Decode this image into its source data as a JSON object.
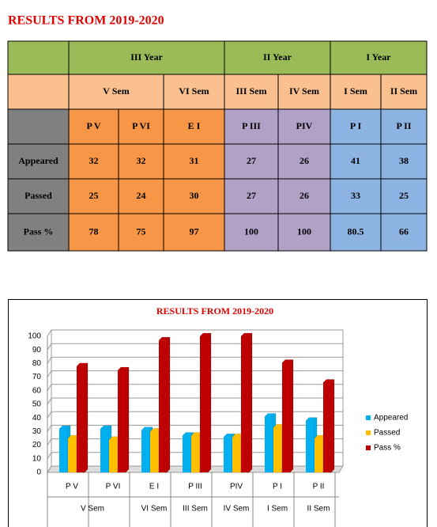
{
  "title": "RESULTS FROM 2019-2020",
  "table": {
    "years": [
      "III Year",
      "II Year",
      "I Year"
    ]
  },
  "chart_data": {
    "type": "bar",
    "title": "RESULTS FROM 2019-2020",
    "categories": [
      "P V",
      "P VI",
      "E I",
      "P III",
      "PIV",
      "P I",
      "P II"
    ],
    "groups": [
      "V Sem",
      "VI Sem",
      "III Sem",
      "IV Sem",
      "I Sem",
      "II Sem"
    ],
    "series": [
      {
        "name": "Appeared",
        "color": "#00b0f0",
        "values": [
          32,
          32,
          31,
          27,
          26,
          41,
          38
        ]
      },
      {
        "name": "Passed",
        "color": "#ffc000",
        "values": [
          25,
          24,
          30,
          27,
          26,
          33,
          25
        ]
      },
      {
        "name": "Pass %",
        "color": "#c00000",
        "values": [
          78,
          75,
          97,
          100,
          100,
          80.5,
          66
        ]
      }
    ],
    "ylim": [
      0,
      100
    ],
    "yticks": [
      0,
      10,
      20,
      30,
      40,
      50,
      60,
      70,
      80,
      90,
      100
    ],
    "grid": true
  }
}
